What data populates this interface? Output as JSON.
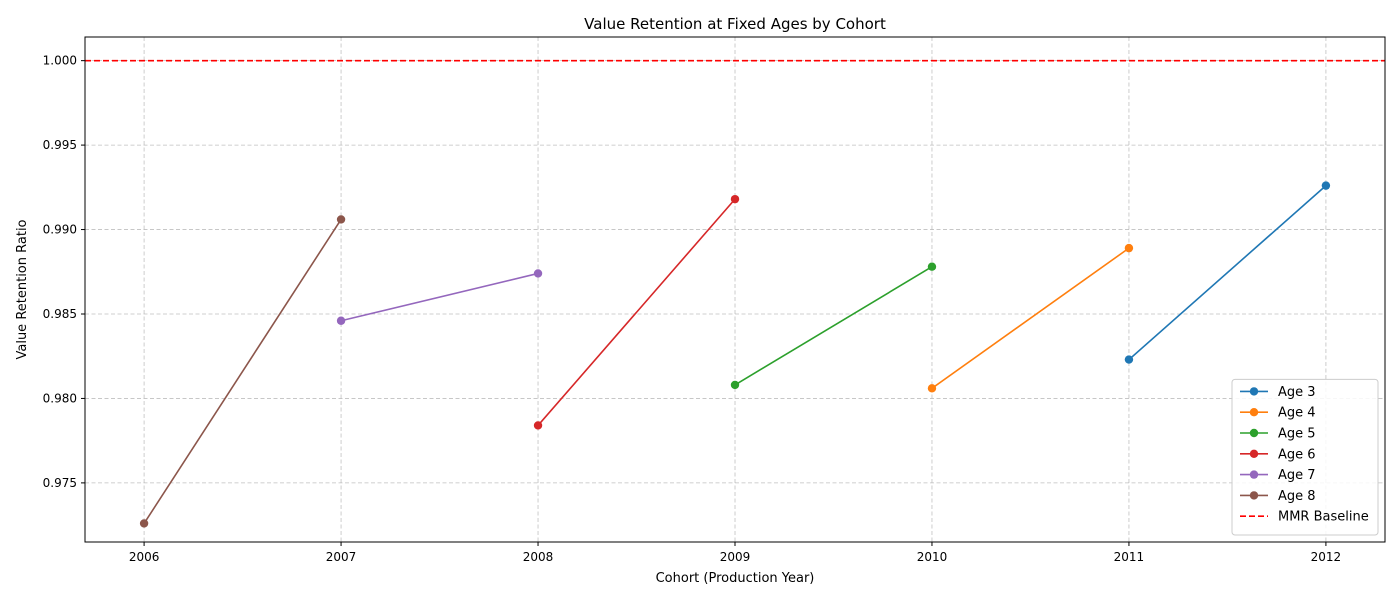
{
  "chart_data": {
    "type": "line",
    "title": "Value Retention at Fixed Ages by Cohort",
    "xlabel": "Cohort (Production Year)",
    "ylabel": "Value Retention Ratio",
    "xlim": [
      2005.7,
      2012.3
    ],
    "ylim": [
      0.9715,
      1.0014
    ],
    "x_ticks": [
      2006,
      2007,
      2008,
      2009,
      2010,
      2011,
      2012
    ],
    "y_ticks": [
      0.975,
      0.98,
      0.985,
      0.99,
      0.995,
      1.0
    ],
    "y_tick_labels": [
      "0.975",
      "0.980",
      "0.985",
      "0.990",
      "0.995",
      "1.000"
    ],
    "grid": true,
    "legend_position": "lower-right",
    "series": [
      {
        "name": "Age 3",
        "color": "#1f77b4",
        "x": [
          2011,
          2012
        ],
        "y": [
          0.9823,
          0.9926
        ]
      },
      {
        "name": "Age 4",
        "color": "#ff7f0e",
        "x": [
          2010,
          2011
        ],
        "y": [
          0.9806,
          0.9889
        ]
      },
      {
        "name": "Age 5",
        "color": "#2ca02c",
        "x": [
          2009,
          2010
        ],
        "y": [
          0.9808,
          0.9878
        ]
      },
      {
        "name": "Age 6",
        "color": "#d62728",
        "x": [
          2008,
          2009
        ],
        "y": [
          0.9784,
          0.9918
        ]
      },
      {
        "name": "Age 7",
        "color": "#9467bd",
        "x": [
          2007,
          2008
        ],
        "y": [
          0.9846,
          0.9874
        ]
      },
      {
        "name": "Age 8",
        "color": "#8c564b",
        "x": [
          2006,
          2007
        ],
        "y": [
          0.9726,
          0.9906
        ]
      }
    ],
    "reference_lines": [
      {
        "name": "MMR Baseline",
        "orientation": "horizontal",
        "y": 1.0,
        "color": "#ff0000",
        "style": "dashed"
      }
    ]
  }
}
